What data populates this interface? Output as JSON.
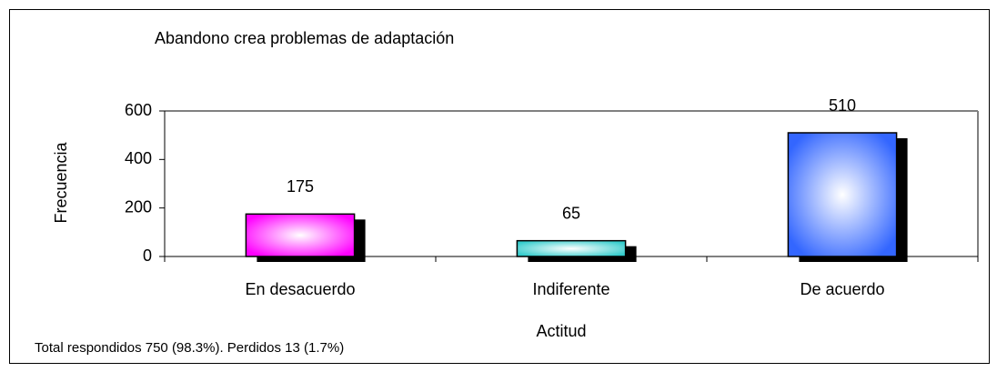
{
  "chart_data": {
    "type": "bar",
    "title": "Abandono crea problemas de adaptación",
    "x_label": "Actitud",
    "y_label": "Frecuencia",
    "note": "Total respondidos 750 (98.3%). Perdidos 13 (1.7%)",
    "categories": [
      "En desacuerdo",
      "Indiferente",
      "De acuerdo"
    ],
    "values": [
      175,
      65,
      510
    ],
    "colors": [
      "#ff00ff",
      "#33cccc",
      "#3366ff"
    ],
    "ylim": [
      0,
      600
    ],
    "yticks": [
      0,
      200,
      400,
      600
    ]
  }
}
